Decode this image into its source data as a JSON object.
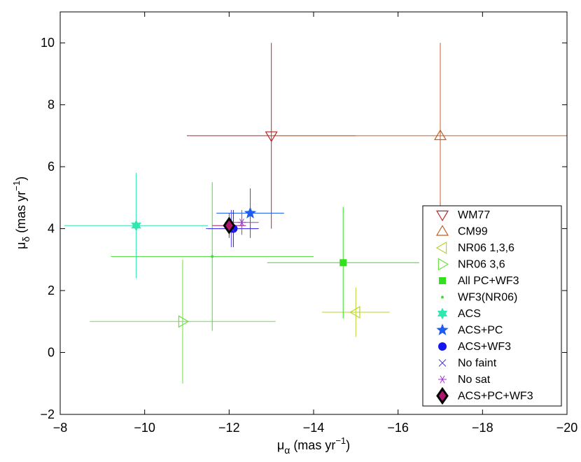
{
  "chart_data": {
    "type": "scatter",
    "xlabel": [
      "μ",
      "α",
      " (mas yr",
      "−1",
      ")"
    ],
    "ylabel": [
      "μ",
      "δ",
      " (mas yr",
      "−1",
      ")"
    ],
    "xlim": [
      -8,
      -20
    ],
    "ylim": [
      -2,
      11
    ],
    "xticks": [
      {
        "value": -8,
        "label": "−8"
      },
      {
        "value": -10,
        "label": "−10"
      },
      {
        "value": -12,
        "label": "−12"
      },
      {
        "value": -14,
        "label": "−14"
      },
      {
        "value": -16,
        "label": "−16"
      },
      {
        "value": -18,
        "label": "−18"
      },
      {
        "value": -20,
        "label": "−20"
      }
    ],
    "yticks": [
      {
        "value": -2,
        "label": "−2"
      },
      0,
      2,
      4,
      6,
      8,
      10
    ],
    "legend": "lower right",
    "series": [
      {
        "name": "WM77",
        "color": "#b8282a",
        "marker": "v",
        "x": [
          -13
        ],
        "y": [
          7
        ],
        "xerr": [
          2
        ],
        "yerr": [
          3
        ]
      },
      {
        "name": "CM99",
        "color": "#c0602a",
        "marker": "^",
        "x": [
          -17
        ],
        "y": [
          7
        ],
        "xerr": [
          4
        ],
        "yerr": [
          3
        ]
      },
      {
        "name": "NR06 1,3,6",
        "color": "#b8d62a",
        "marker": "<",
        "x": [
          -15
        ],
        "y": [
          1.3
        ],
        "xerr": [
          0.8
        ],
        "yerr": [
          0.8
        ]
      },
      {
        "name": "NR06 3,6",
        "color": "#6fe043",
        "marker": ">",
        "x": [
          -10.9
        ],
        "y": [
          1.0
        ],
        "xerr": [
          2.2
        ],
        "yerr": [
          2
        ]
      },
      {
        "name": "All PC+WF3",
        "color": "#33e01e",
        "marker": "s",
        "x": [
          -14.7
        ],
        "y": [
          2.9
        ],
        "xerr": [
          1.8
        ],
        "yerr": [
          1.8
        ]
      },
      {
        "name": "WF3(NR06)",
        "color": "#44dd33",
        "marker": ".",
        "x": [
          -11.6
        ],
        "y": [
          3.1
        ],
        "xerr": [
          2.4
        ],
        "yerr": [
          2.4
        ]
      },
      {
        "name": "ACS",
        "color": "#2ee8b0",
        "marker": "h",
        "x": [
          -9.8
        ],
        "y": [
          4.1
        ],
        "xerr": [
          1.7
        ],
        "yerr": [
          1.7
        ]
      },
      {
        "name": "ACS+PC",
        "color": "#1f5cf0",
        "marker": "p",
        "x": [
          -12.5
        ],
        "y": [
          4.5
        ],
        "xerr": [
          0.8
        ],
        "yerr": [
          0.8
        ]
      },
      {
        "name": "ACS+WF3",
        "color": "#1515f0",
        "marker": "o",
        "x": [
          -12.1
        ],
        "y": [
          4.0
        ],
        "xerr": [
          0.6
        ],
        "yerr": [
          0.6
        ]
      },
      {
        "name": "No faint",
        "color": "#4b3ae8",
        "marker": "x",
        "x": [
          -12.05
        ],
        "y": [
          4.0
        ],
        "xerr": [
          0.6
        ],
        "yerr": [
          0.6
        ]
      },
      {
        "name": "No sat",
        "color": "#a035d8",
        "marker": "*",
        "x": [
          -12.3
        ],
        "y": [
          4.2
        ],
        "xerr": [
          0.4
        ],
        "yerr": [
          0.4
        ]
      },
      {
        "name": "ACS+PC+WF3",
        "color": "#b0166e",
        "marker": "D",
        "x": [
          -12.0
        ],
        "y": [
          4.1
        ],
        "xerr": [
          0.4
        ],
        "yerr": [
          0.4
        ]
      }
    ]
  }
}
